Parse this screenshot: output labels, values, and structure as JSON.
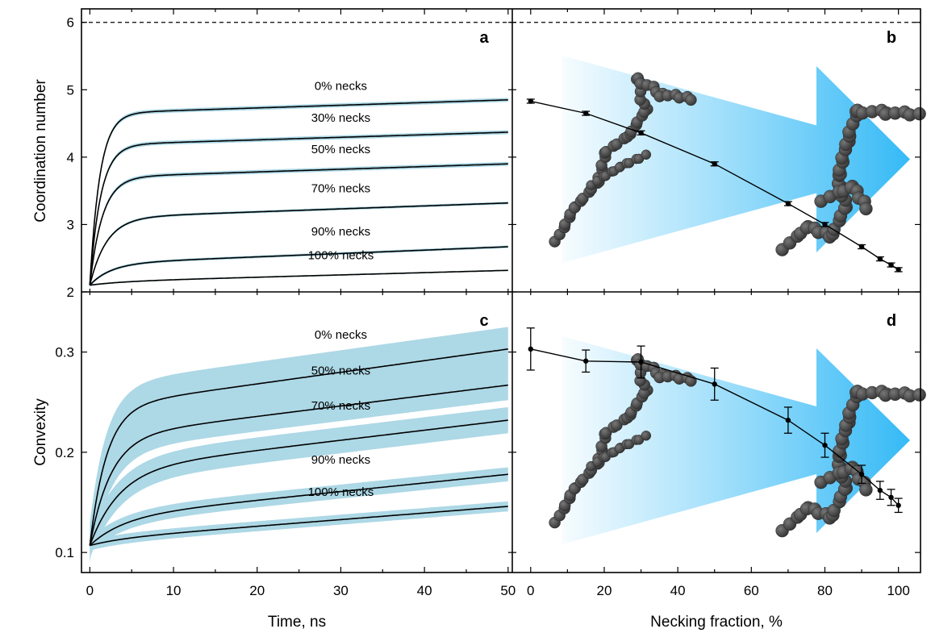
{
  "chart_data": [
    {
      "panel": "a",
      "type": "line",
      "xlabel": "",
      "ylabel": "Coordination number",
      "xlim": [
        -1,
        50.5
      ],
      "ylim": [
        2,
        6.2
      ],
      "yticks": [
        "2",
        "3",
        "4",
        "5",
        "6"
      ],
      "reference_line": {
        "y": 6,
        "style": "dashed"
      },
      "band_color": "#add8e6",
      "series": [
        {
          "name": "0% necks",
          "start": 2.1,
          "tau": 1.2,
          "plateau": 4.65,
          "drift": 0.2,
          "end": 4.84,
          "band": [
            0.03,
            0.03
          ]
        },
        {
          "name": "30% necks",
          "start": 2.1,
          "tau": 1.3,
          "plateau": 4.18,
          "drift": 0.19,
          "end": 4.37,
          "band": [
            0.03,
            0.03
          ]
        },
        {
          "name": "50% necks",
          "start": 2.1,
          "tau": 1.5,
          "plateau": 3.7,
          "drift": 0.2,
          "end": 3.9,
          "band": [
            0.03,
            0.03
          ]
        },
        {
          "name": "70% necks",
          "start": 2.1,
          "tau": 2.0,
          "plateau": 3.1,
          "drift": 0.22,
          "end": 3.32,
          "band": [
            0.02,
            0.02
          ]
        },
        {
          "name": "90% necks",
          "start": 2.1,
          "tau": 2.5,
          "plateau": 2.42,
          "drift": 0.25,
          "end": 2.68,
          "band": [
            0.02,
            0.02
          ]
        },
        {
          "name": "100% necks",
          "start": 2.1,
          "tau": 4.0,
          "plateau": 2.15,
          "drift": 0.17,
          "end": 2.33,
          "band": [
            0.01,
            0.01
          ]
        }
      ]
    },
    {
      "panel": "b",
      "type": "line",
      "xlabel": "",
      "ylabel": "",
      "xlim": [
        -5,
        106
      ],
      "ylim": [
        2,
        6.2
      ],
      "reference_line": {
        "y": 6,
        "style": "dashed"
      },
      "x": [
        0,
        15,
        30,
        50,
        70,
        80,
        90,
        95,
        98,
        100
      ],
      "y": [
        4.83,
        4.65,
        4.36,
        3.9,
        3.31,
        3.0,
        2.67,
        2.49,
        2.4,
        2.33
      ],
      "yerr": [
        0.03,
        0.03,
        0.03,
        0.03,
        0.03,
        0.03,
        0.03,
        0.03,
        0.03,
        0.03
      ]
    },
    {
      "panel": "c",
      "type": "line",
      "xlabel": "Time, ns",
      "ylabel": "Convexity",
      "xlim": [
        -1,
        50.5
      ],
      "ylim": [
        0.08,
        0.36
      ],
      "xticks": [
        "0",
        "10",
        "20",
        "30",
        "40",
        "50"
      ],
      "yticks": [
        "0.1",
        "0.2",
        "0.3"
      ],
      "band_color": "#add8e6",
      "series": [
        {
          "name": "0% necks",
          "start": 0.107,
          "tau": 2.0,
          "plateau": 0.245,
          "drift": 0.058,
          "end": 0.303,
          "band": [
            0.018,
            0.022
          ]
        },
        {
          "name": "50% necks",
          "start": 0.107,
          "tau": 2.5,
          "plateau": 0.215,
          "drift": 0.052,
          "end": 0.267,
          "band": [
            0.015,
            0.02
          ]
        },
        {
          "name": "70% necks",
          "start": 0.107,
          "tau": 3.5,
          "plateau": 0.182,
          "drift": 0.05,
          "end": 0.232,
          "band": [
            0.013,
            0.013
          ]
        },
        {
          "name": "90% necks",
          "start": 0.107,
          "tau": 4.0,
          "plateau": 0.135,
          "drift": 0.043,
          "end": 0.178,
          "band": [
            0.007,
            0.007
          ]
        },
        {
          "name": "100% necks",
          "start": 0.107,
          "tau": 4.0,
          "plateau": 0.113,
          "drift": 0.033,
          "end": 0.146,
          "band": [
            0.005,
            0.005
          ]
        }
      ]
    },
    {
      "panel": "d",
      "type": "line",
      "xlabel": "Necking fraction, %",
      "ylabel": "",
      "xlim": [
        -5,
        106
      ],
      "ylim": [
        0.08,
        0.36
      ],
      "xticks": [
        "0",
        "20",
        "40",
        "60",
        "80",
        "100"
      ],
      "x": [
        0,
        15,
        30,
        50,
        70,
        80,
        90,
        95,
        98,
        100
      ],
      "y": [
        0.303,
        0.291,
        0.29,
        0.268,
        0.232,
        0.207,
        0.178,
        0.162,
        0.155,
        0.147
      ],
      "yerr": [
        0.021,
        0.011,
        0.016,
        0.016,
        0.013,
        0.012,
        0.009,
        0.009,
        0.008,
        0.007
      ]
    }
  ],
  "arrow_color": "#35baf6"
}
